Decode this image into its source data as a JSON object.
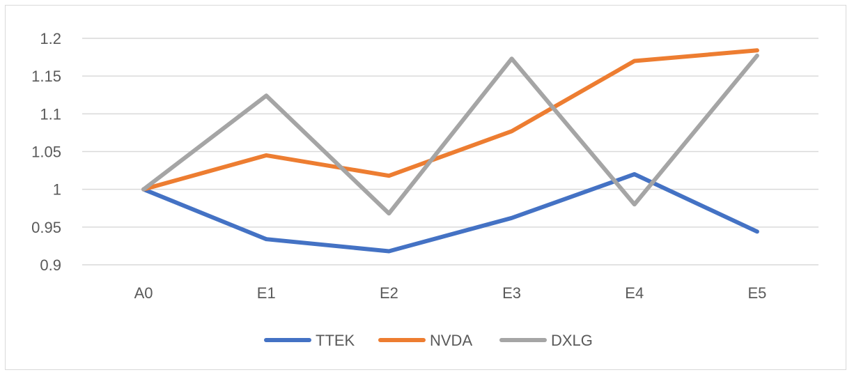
{
  "chart_data": {
    "type": "line",
    "title": "",
    "xlabel": "",
    "ylabel": "",
    "categories": [
      "A0",
      "E1",
      "E2",
      "E3",
      "E4",
      "E5"
    ],
    "ylim": [
      0.9,
      1.2
    ],
    "yticks": [
      "0.9",
      "0.95",
      "1",
      "1.05",
      "1.1",
      "1.15",
      "1.2"
    ],
    "grid": true,
    "legend_position": "bottom",
    "series": [
      {
        "name": "TTEK",
        "color": "#4472c4",
        "values": [
          1.0,
          0.934,
          0.918,
          0.962,
          1.02,
          0.944
        ]
      },
      {
        "name": "NVDA",
        "color": "#ed7d31",
        "values": [
          1.0,
          1.045,
          1.018,
          1.077,
          1.17,
          1.184
        ]
      },
      {
        "name": "DXLG",
        "color": "#a5a5a5",
        "values": [
          1.0,
          1.124,
          0.968,
          1.173,
          0.98,
          1.177
        ]
      }
    ]
  }
}
